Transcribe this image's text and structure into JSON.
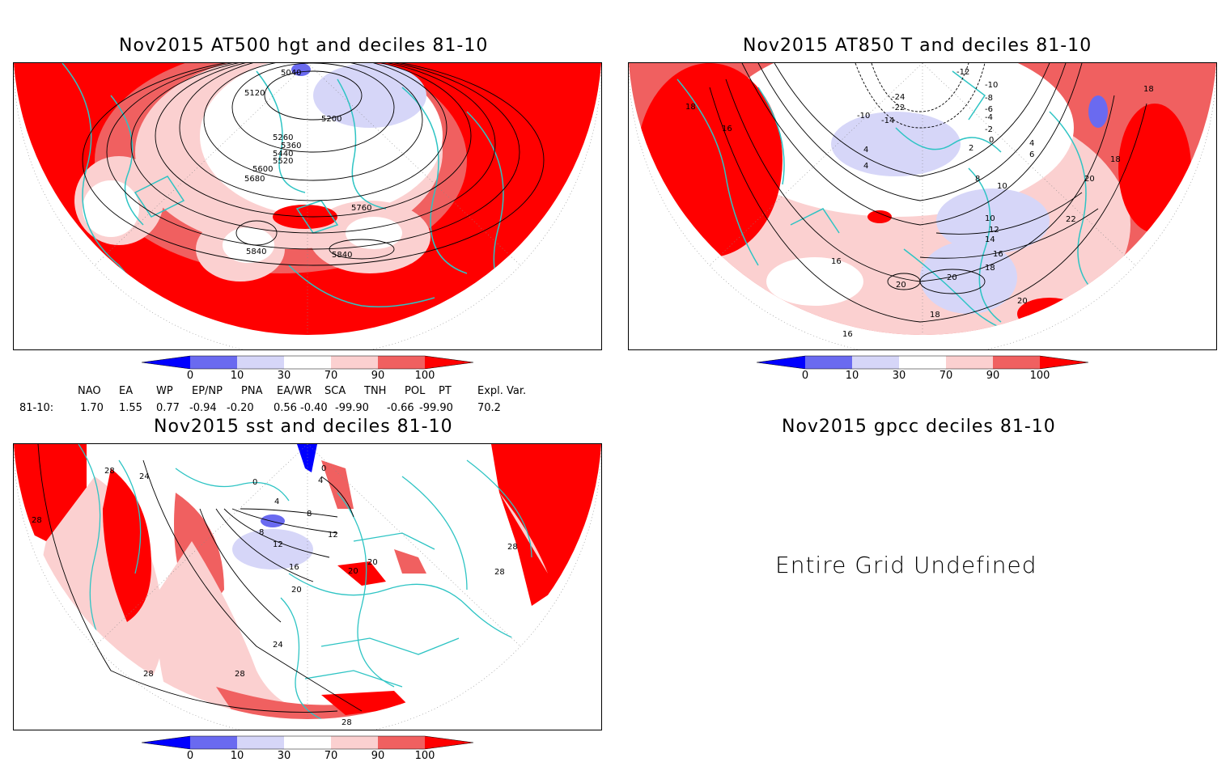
{
  "panels": {
    "p1": {
      "title": "Nov2015 AT500 hgt and deciles 81-10",
      "contour_labels": [
        "5040",
        "5120",
        "5200",
        "5260",
        "5360",
        "5440",
        "5520",
        "5600",
        "5680",
        "5760",
        "5840",
        "5840"
      ]
    },
    "p2": {
      "title": "Nov2015 AT850 T and deciles 81-10",
      "contour_labels": [
        "-12",
        "-10",
        "-8",
        "-6",
        "-4",
        "-2",
        "0",
        "2",
        "4",
        "6",
        "-24",
        "-22",
        "-14",
        "-10",
        "18",
        "18",
        "16",
        "18",
        "20",
        "22",
        "10",
        "12",
        "14",
        "16",
        "18",
        "20",
        "20",
        "20",
        "16",
        "16",
        "18",
        "4",
        "4",
        "10",
        "8"
      ]
    },
    "p3": {
      "title": "Nov2015 sst and deciles 81-10",
      "contour_labels": [
        "28",
        "24",
        "28",
        "0",
        "0",
        "4",
        "4",
        "8",
        "8",
        "12",
        "12",
        "16",
        "20",
        "20",
        "20",
        "24",
        "28",
        "28",
        "28",
        "28",
        "28"
      ]
    },
    "p4": {
      "title": "Nov2015 gpcc deciles 81-10",
      "message": "Entire Grid Undefined"
    }
  },
  "colorbar": {
    "ticks": [
      "0",
      "10",
      "30",
      "70",
      "90",
      "100"
    ],
    "colors": [
      "#0000ff",
      "#6a6af0",
      "#d6d6f8",
      "#ffffff",
      "#fbd0d0",
      "#f06060",
      "#ff0000"
    ]
  },
  "indices": {
    "headers": [
      "NAO",
      "EA",
      "WP",
      "EP/NP",
      "PNA",
      "EA/WR",
      "SCA",
      "TNH",
      "POL",
      "PT",
      "Expl. Var."
    ],
    "row_label": "81-10:",
    "values": [
      "1.70",
      "1.55",
      "0.77",
      "-0.94",
      "-0.20",
      "0.56",
      "-0.40",
      "-99.90",
      "-0.66",
      "-99.90",
      "70.2"
    ]
  },
  "map_colors": {
    "coast": "#2ec4c4",
    "strong_red": "#ff0000",
    "medium_red": "#f06060",
    "light_red": "#fbd0d0",
    "light_blue": "#d6d6f8",
    "medium_blue": "#6a6af0",
    "strong_blue": "#0000ff"
  }
}
